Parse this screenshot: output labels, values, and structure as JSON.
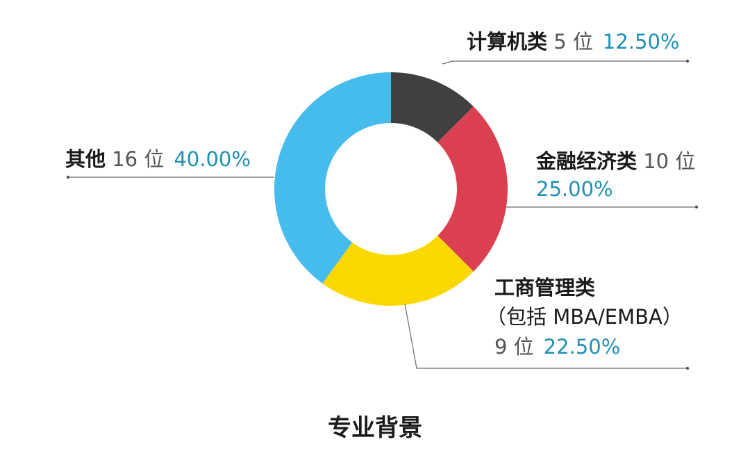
{
  "chart_data": {
    "type": "pie",
    "style": "donut",
    "title": "专业背景",
    "unit": "位",
    "series": [
      {
        "name": "计算机类",
        "count": 5,
        "percent": 12.5,
        "count_text": "5 位",
        "percent_text": "12.50%",
        "color": "#404040"
      },
      {
        "name": "金融经济类",
        "count": 10,
        "percent": 25.0,
        "count_text": "10 位",
        "percent_text": "25.00%",
        "color": "#db4050"
      },
      {
        "name": "工商管理类",
        "name_line2": "（包括 MBA/EMBA）",
        "count": 9,
        "percent": 22.5,
        "count_text": "9 位",
        "percent_text": "22.50%",
        "color": "#fbd800"
      },
      {
        "name": "其他",
        "count": 16,
        "percent": 40.0,
        "count_text": "16 位",
        "percent_text": "40.00%",
        "color": "#45bcec"
      }
    ],
    "legend": "callout labels with leader lines"
  }
}
